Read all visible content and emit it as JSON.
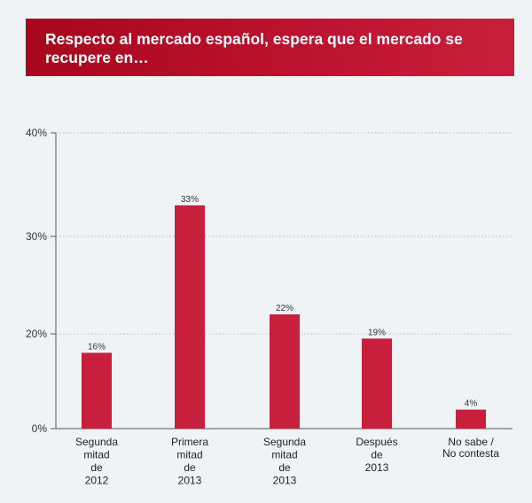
{
  "header": {
    "title_line1": "Respecto al mercado español, espera que el mercado se",
    "title_line2": "recupere en…"
  },
  "colors": {
    "bar": "#c8203c",
    "banner": "#b50c26",
    "background": "#eff3f6",
    "grid": "#b9bec3"
  },
  "chart_data": {
    "type": "bar",
    "title": "Respecto al mercado español, espera que el mercado se recupere en…",
    "xlabel": "",
    "ylabel": "",
    "ylim": [
      0,
      40
    ],
    "y_ticks": [
      0,
      20,
      30,
      40
    ],
    "y_tick_labels": [
      "0%",
      "20%",
      "30%",
      "40%"
    ],
    "grid": true,
    "categories": [
      [
        "Segunda",
        "mitad",
        "de",
        "2012"
      ],
      [
        "Primera",
        "mitad",
        "de",
        "2013"
      ],
      [
        "Segunda",
        "mitad",
        "de",
        "2013"
      ],
      [
        "Después",
        "de",
        "2013"
      ],
      [
        "No sabe /",
        "No contesta"
      ]
    ],
    "values": [
      16,
      33,
      22,
      19,
      4
    ],
    "value_labels": [
      "16%",
      "33%",
      "22%",
      "19%",
      "4%"
    ]
  }
}
